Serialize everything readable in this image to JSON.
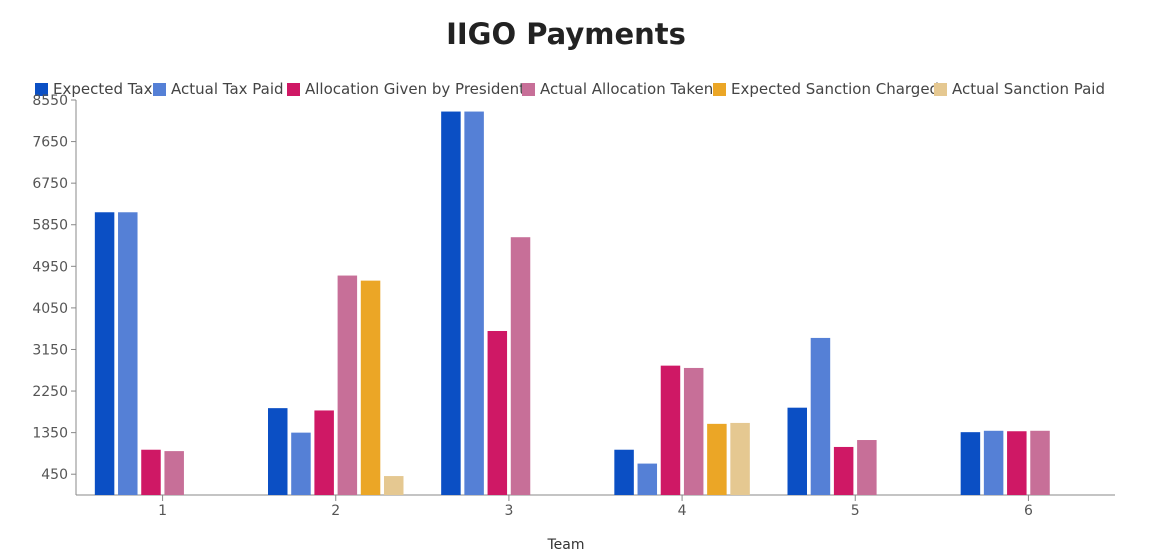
{
  "chart_data": {
    "type": "bar",
    "title": "IIGO Payments",
    "xlabel": "Team",
    "ylabel": "",
    "categories": [
      "1",
      "2",
      "3",
      "4",
      "5",
      "6"
    ],
    "yticks": [
      "450",
      "1350",
      "2250",
      "3150",
      "4050",
      "4950",
      "5850",
      "6750",
      "7650",
      "8550"
    ],
    "ylim": [
      0,
      8550
    ],
    "legend_position": "top",
    "grid": false,
    "series": [
      {
        "name": "Expected Tax",
        "color": "#0b4fc4",
        "values": [
          6120,
          1880,
          8300,
          980,
          1890,
          1360
        ]
      },
      {
        "name": "Actual Tax Paid",
        "color": "#5580d6",
        "values": [
          6120,
          1350,
          8300,
          680,
          3400,
          1390
        ]
      },
      {
        "name": "Allocation Given by President",
        "color": "#cf1865",
        "values": [
          980,
          1830,
          3550,
          2800,
          1040,
          1380
        ]
      },
      {
        "name": "Actual Allocation Taken",
        "color": "#c76f98",
        "values": [
          950,
          4750,
          5580,
          2750,
          1190,
          1390
        ]
      },
      {
        "name": "Expected Sanction Charged",
        "color": "#eba626",
        "values": [
          0,
          4640,
          0,
          1540,
          0,
          0
        ]
      },
      {
        "name": "Actual Sanction Paid",
        "color": "#e5c891",
        "values": [
          0,
          410,
          0,
          1560,
          0,
          0
        ]
      }
    ]
  }
}
